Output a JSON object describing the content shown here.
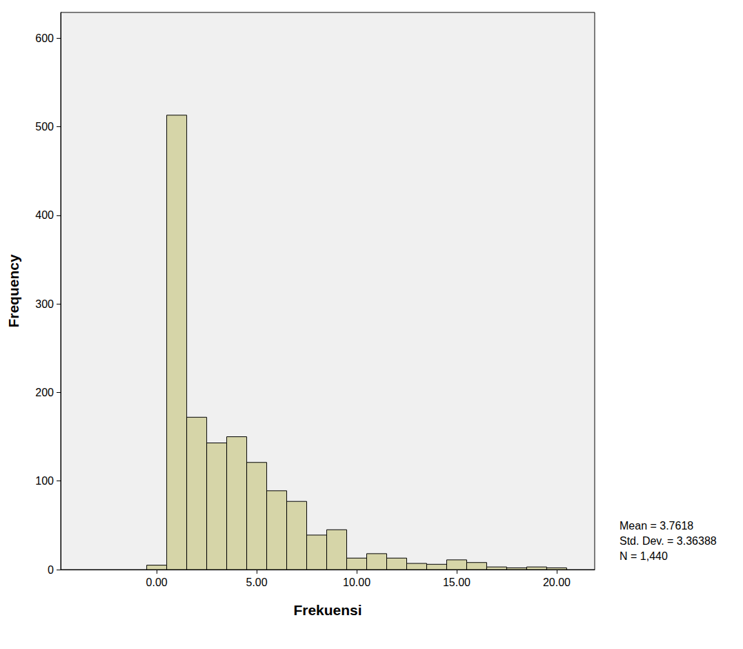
{
  "chart_data": {
    "type": "histogram",
    "x_label": "Frekuensi",
    "y_label": "Frequency",
    "bins": [
      -0.5,
      0.5,
      1.5,
      2.5,
      3.5,
      4.5,
      5.5,
      6.5,
      7.5,
      8.5,
      9.5,
      10.5,
      11.5,
      12.5,
      13.5,
      14.5,
      15.5,
      16.5,
      17.5,
      18.5,
      19.5,
      20.5
    ],
    "values": [
      5,
      513,
      172,
      143,
      150,
      121,
      89,
      77,
      39,
      45,
      13,
      18,
      13,
      7,
      6,
      11,
      8,
      3,
      2,
      3,
      2
    ],
    "color": "#d6d5a8",
    "xlim": [
      -4.8,
      21.9
    ],
    "xticks": [
      {
        "value": 0,
        "label": "0.00"
      },
      {
        "value": 5,
        "label": "5.00"
      },
      {
        "value": 10,
        "label": "10.00"
      },
      {
        "value": 15,
        "label": "15.00"
      },
      {
        "value": 20,
        "label": "20.00"
      }
    ],
    "ylim": [
      0,
      629
    ],
    "yticks": [
      0,
      100,
      200,
      300,
      400,
      500,
      600
    ],
    "grid": false,
    "annotations": [
      "Mean = 3.7618",
      "Std. Dev. = 3.36388",
      "N = 1,440"
    ]
  }
}
